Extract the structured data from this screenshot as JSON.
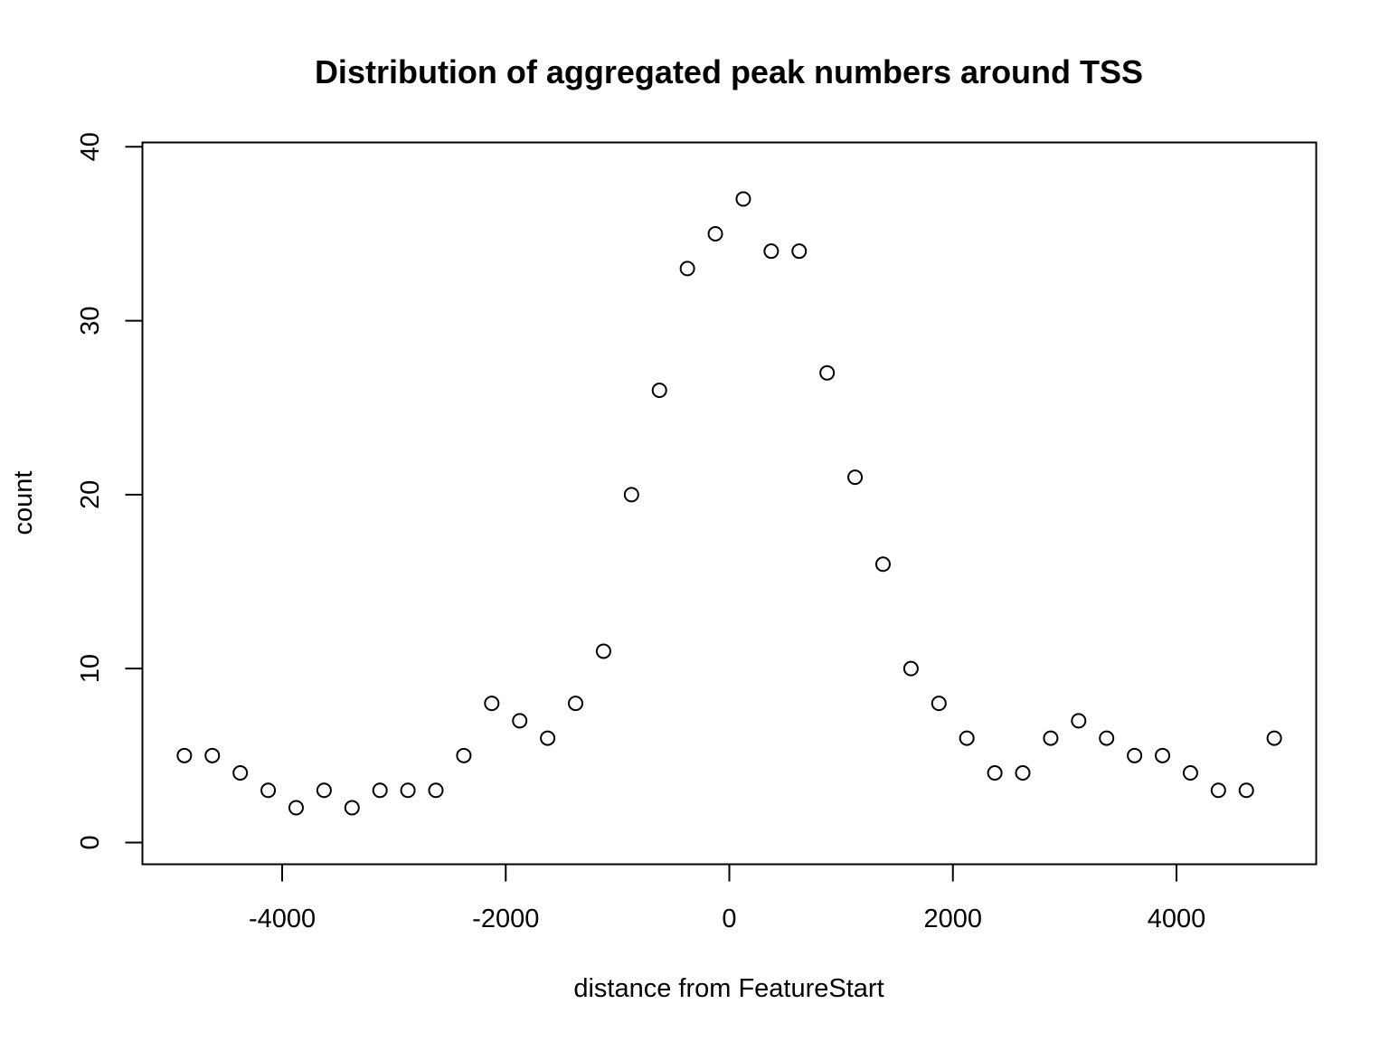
{
  "chart_data": {
    "type": "scatter",
    "title": "Distribution of aggregated peak numbers around TSS",
    "xlabel": "distance from FeatureStart",
    "ylabel": "count",
    "xlim": [
      -5250,
      5250
    ],
    "ylim": [
      -1.25,
      40.25
    ],
    "x_ticks": [
      -4000,
      -2000,
      0,
      2000,
      4000
    ],
    "x_tick_labels": [
      "-4000",
      "-2000",
      "0",
      "2000",
      "4000"
    ],
    "y_ticks": [
      0,
      10,
      20,
      30,
      40
    ],
    "y_tick_labels": [
      "0",
      "10",
      "20",
      "30",
      "40"
    ],
    "grid": false,
    "marker": "open-circle",
    "point_color": "#000000",
    "x": [
      -4875,
      -4625,
      -4375,
      -4125,
      -3875,
      -3625,
      -3375,
      -3125,
      -2875,
      -2625,
      -2375,
      -2125,
      -1875,
      -1625,
      -1375,
      -1125,
      -875,
      -625,
      -375,
      -125,
      125,
      375,
      625,
      875,
      1125,
      1375,
      1625,
      1875,
      2125,
      2375,
      2625,
      2875,
      3125,
      3375,
      3625,
      3875,
      4125,
      4375,
      4625,
      4875
    ],
    "y": [
      5,
      5,
      4,
      3,
      2,
      3,
      2,
      3,
      3,
      3,
      5,
      8,
      7,
      6,
      8,
      11,
      20,
      26,
      33,
      35,
      37,
      34,
      34,
      27,
      21,
      16,
      10,
      8,
      6,
      4,
      4,
      6,
      7,
      6,
      5,
      5,
      4,
      3,
      3,
      6
    ]
  }
}
